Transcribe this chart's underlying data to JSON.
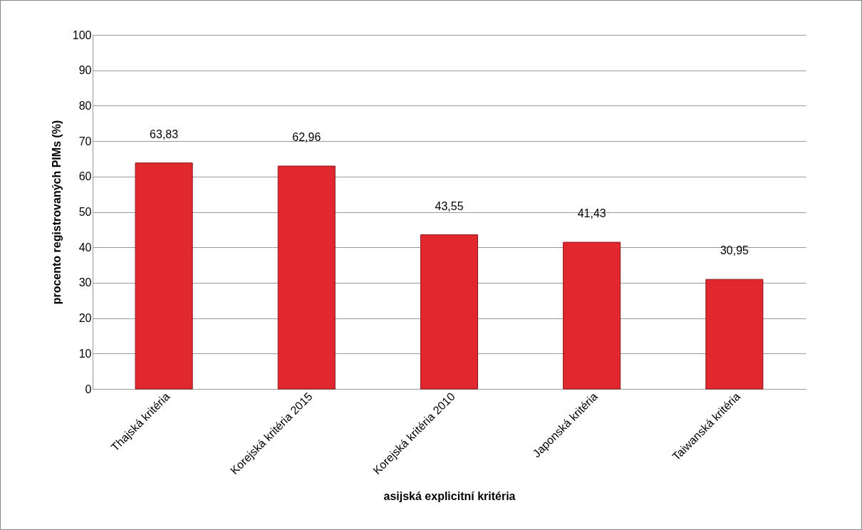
{
  "chart_data": {
    "type": "bar",
    "xlabel": "asijská explicitní kritéria",
    "ylabel": "procento registrovaných PIMs (%)",
    "categories": [
      "Thajská kritéria",
      "Korejská kritéria 2015",
      "Korejská kritéria 2010",
      "Japonská kritéria",
      "Taiwanská kritéria"
    ],
    "values": [
      63.83,
      62.96,
      43.55,
      41.43,
      30.95
    ],
    "value_labels": [
      "63,83",
      "62,96",
      "43,55",
      "41,43",
      "30,95"
    ],
    "color": "#e0282e",
    "ylim": [
      0,
      100
    ],
    "yticks": [
      0,
      10,
      20,
      30,
      40,
      50,
      60,
      70,
      80,
      90,
      100
    ],
    "grid": "y"
  }
}
